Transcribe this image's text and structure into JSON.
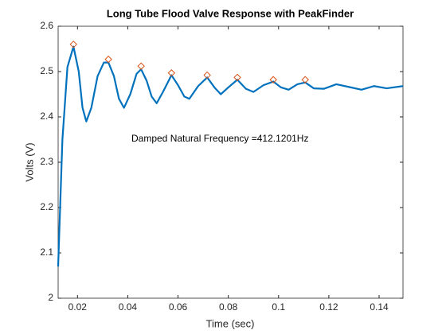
{
  "chart_data": {
    "type": "line",
    "title": "Long Tube Flood Valve Response with PeakFinder",
    "x_label": "Time (sec)",
    "y_label": "Volts (V)",
    "annotation": "Damped Natural Frequency =412.1201Hz",
    "x": [
      0.0123,
      0.014,
      0.016,
      0.0184,
      0.0205,
      0.022,
      0.0235,
      0.0255,
      0.028,
      0.0305,
      0.0323,
      0.0345,
      0.0365,
      0.0385,
      0.041,
      0.0435,
      0.0453,
      0.0475,
      0.0495,
      0.0515,
      0.054,
      0.0574,
      0.06,
      0.0625,
      0.0645,
      0.068,
      0.0716,
      0.0745,
      0.077,
      0.08,
      0.0836,
      0.087,
      0.09,
      0.094,
      0.0979,
      0.101,
      0.104,
      0.1075,
      0.1106,
      0.114,
      0.118,
      0.123,
      0.128,
      0.133,
      0.138,
      0.143,
      0.1495
    ],
    "series": [
      {
        "color": "#0072bd",
        "values": [
          2.07,
          2.35,
          2.51,
          2.555,
          2.5,
          2.42,
          2.39,
          2.42,
          2.49,
          2.52,
          2.52,
          2.49,
          2.44,
          2.42,
          2.45,
          2.495,
          2.505,
          2.48,
          2.445,
          2.43,
          2.455,
          2.492,
          2.47,
          2.445,
          2.44,
          2.468,
          2.487,
          2.465,
          2.45,
          2.465,
          2.482,
          2.462,
          2.455,
          2.47,
          2.478,
          2.465,
          2.46,
          2.472,
          2.476,
          2.463,
          2.462,
          2.472,
          2.466,
          2.46,
          2.468,
          2.463,
          2.468
        ]
      }
    ],
    "peaks": {
      "color": "#d95319",
      "x": [
        0.0184,
        0.0323,
        0.0453,
        0.0574,
        0.0716,
        0.0836,
        0.0979,
        0.1106
      ],
      "values": [
        2.56,
        2.527,
        2.512,
        2.497,
        2.492,
        2.487,
        2.482,
        2.482
      ]
    },
    "xlim": [
      0.0123,
      0.1495
    ],
    "ylim": [
      2,
      2.6
    ],
    "xticks": [
      0.02,
      0.04,
      0.06,
      0.08,
      0.1,
      0.12,
      0.14
    ],
    "yticks": [
      2,
      2.1,
      2.2,
      2.3,
      2.4,
      2.5,
      2.6
    ],
    "grid": false
  }
}
